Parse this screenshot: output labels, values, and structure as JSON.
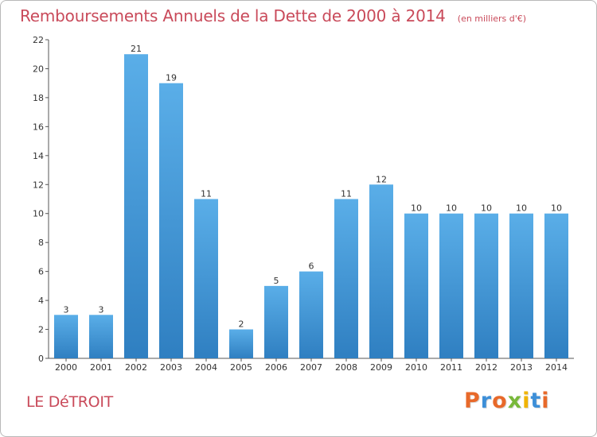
{
  "header": {
    "title": "Remboursements Annuels de la Dette de 2000 à 2014",
    "subtitle": "(en milliers d'€)"
  },
  "footer": {
    "place_name": "LE DéTROIT",
    "brand": "Proxiti"
  },
  "colors": {
    "title": "#c94a5a",
    "bar_top": "#5aaee8",
    "bar_bottom": "#2f7fc1",
    "axis": "#555555",
    "brand_letters": [
      "#e8692a",
      "#3d8fd8",
      "#e8692a",
      "#78b83a",
      "#f0b400",
      "#3d8fd8",
      "#e8692a"
    ]
  },
  "chart_data": {
    "type": "bar",
    "title": "Remboursements Annuels de la Dette de 2000 à 2014",
    "subtitle": "(en milliers d'€)",
    "xlabel": "",
    "ylabel": "",
    "categories": [
      "2000",
      "2001",
      "2002",
      "2003",
      "2004",
      "2005",
      "2006",
      "2007",
      "2008",
      "2009",
      "2010",
      "2011",
      "2012",
      "2013",
      "2014"
    ],
    "values": [
      3,
      3,
      21,
      19,
      11,
      2,
      5,
      6,
      11,
      12,
      10,
      10,
      10,
      10,
      10
    ],
    "data_labels": [
      "3",
      "3",
      "21",
      "19",
      "11",
      "2",
      "5",
      "6",
      "11",
      "12",
      "10",
      "10",
      "10",
      "10",
      "10"
    ],
    "ylim": [
      0,
      22
    ],
    "yticks": [
      "0",
      "2",
      "4",
      "6",
      "8",
      "10",
      "12",
      "14",
      "16",
      "18",
      "20",
      "22"
    ],
    "grid": false,
    "legend": "none"
  }
}
